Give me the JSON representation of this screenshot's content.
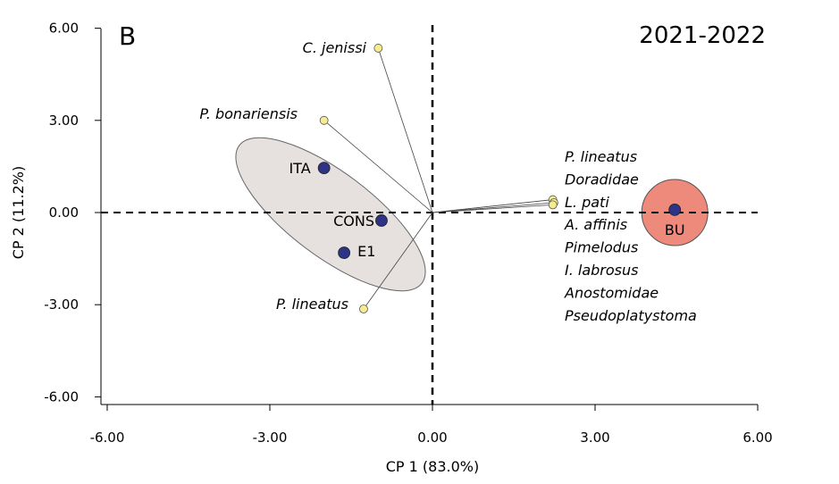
{
  "chart_data": {
    "type": "scatter",
    "panel_label": "B",
    "title": "2021-2022",
    "xlabel": "CP 1 (83.0%)",
    "ylabel": "CP 2 (11.2%)",
    "xlim": [
      -6,
      6
    ],
    "ylim": [
      -6,
      6
    ],
    "xticks": [
      "-6.00",
      "-3.00",
      "0.00",
      "3.00",
      "6.00"
    ],
    "yticks": [
      "6.00",
      "3.00",
      "0.00",
      "-3.00",
      "-6.00"
    ],
    "sites": [
      {
        "name": "ITA",
        "x": -2.0,
        "y": 1.45
      },
      {
        "name": "CONS",
        "x": -0.94,
        "y": -0.26
      },
      {
        "name": "E1",
        "x": -1.63,
        "y": -1.31
      },
      {
        "name": "BU",
        "x": 4.47,
        "y": 0.09
      }
    ],
    "species": [
      {
        "name": "C. jenissi",
        "x": -1.0,
        "y": 5.35
      },
      {
        "name": "P. bonariensis",
        "x": -2.0,
        "y": 3.0
      },
      {
        "name": "P. lineatus",
        "x": -1.27,
        "y": -3.14
      },
      {
        "name": "cluster",
        "x": 2.22,
        "y": 0.42
      },
      {
        "name": "cluster2",
        "x": 2.24,
        "y": 0.32
      },
      {
        "name": "cluster3",
        "x": 2.22,
        "y": 0.25
      }
    ],
    "cluster_labels": [
      "P. lineatus",
      "Doradidae",
      "L. pati",
      "A. affinis",
      "Pimelodus",
      "I. labrosus",
      "Anostomidae",
      "Pseudoplatystoma"
    ],
    "colors": {
      "site": "#2e3386",
      "species": "#f5ec8e",
      "group_ellipse": "#e6e0de",
      "bu_circle": "#ee8a7c"
    }
  }
}
